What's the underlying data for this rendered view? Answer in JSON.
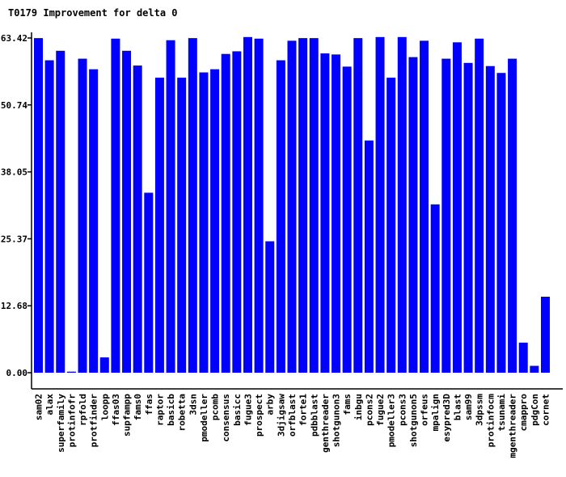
{
  "chart_data": {
    "type": "bar",
    "title": "T0179 Improvement for delta 0",
    "xlabel": "",
    "ylabel": "",
    "ylim": [
      0,
      63.42
    ],
    "yticks": [
      "0.00",
      "12.68",
      "25.37",
      "38.05",
      "50.74",
      "63.42"
    ],
    "grid": false,
    "legend": "none",
    "bar_color": "#0000ff",
    "categories": [
      "sam02",
      "alax",
      "superfamily",
      "protinfofr",
      "rpfold",
      "protfinder",
      "loopp",
      "ffas03",
      "supfampp",
      "fams0",
      "ffas",
      "raptor",
      "basicb",
      "robetta",
      "3dsn",
      "pmodeller",
      "pcomb",
      "consensus",
      "basicc",
      "fugue3",
      "prospect",
      "arby",
      "3djigsaw",
      "orfblast",
      "forte1",
      "pdbblast",
      "genthreader",
      "shotgunon3",
      "fams",
      "inbgu",
      "pcons2",
      "fugue2",
      "pmodeller3",
      "pcons3",
      "shotgunon5",
      "orfeus",
      "mpalign",
      "esypred3D",
      "blast",
      "sam99",
      "3dpssm",
      "protinfocm",
      "tsunami",
      "mgenthreader",
      "cmappro",
      "pdgCon",
      "cornet"
    ],
    "values": [
      63.4,
      59.2,
      61.0,
      0.2,
      59.5,
      57.5,
      2.9,
      63.3,
      61.0,
      58.2,
      34.1,
      55.9,
      63.0,
      55.9,
      63.4,
      56.9,
      57.5,
      60.4,
      60.9,
      63.6,
      63.3,
      24.9,
      59.2,
      62.9,
      63.4,
      63.4,
      60.5,
      60.3,
      58.0,
      63.4,
      44.0,
      63.6,
      55.9,
      63.6,
      59.8,
      62.9,
      31.9,
      59.5,
      62.6,
      58.7,
      63.3,
      58.1,
      56.8,
      59.5,
      5.7,
      1.3,
      14.4
    ]
  }
}
